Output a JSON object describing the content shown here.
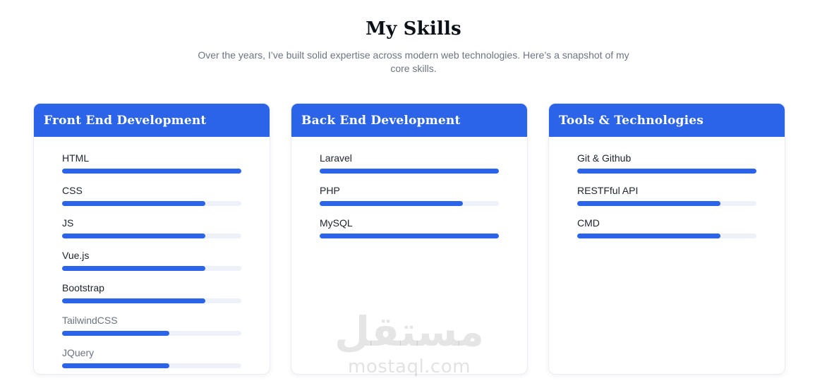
{
  "header": {
    "title": "My Skills",
    "subtitle": "Over the years, I’ve built solid expertise across modern web technologies. Here’s a snapshot of my core skills."
  },
  "colors": {
    "accent": "#2b64e8",
    "progress_track": "#eef1f7",
    "label": "#20262e",
    "label_muted": "#6b7280",
    "header_text": "#ffffff"
  },
  "cards": [
    {
      "title": "Front End Development",
      "skills": [
        {
          "name": "HTML",
          "percent": 100,
          "muted": false
        },
        {
          "name": "CSS",
          "percent": 80,
          "muted": false
        },
        {
          "name": "JS",
          "percent": 80,
          "muted": false
        },
        {
          "name": "Vue.js",
          "percent": 80,
          "muted": false
        },
        {
          "name": "Bootstrap",
          "percent": 80,
          "muted": false
        },
        {
          "name": "TailwindCSS",
          "percent": 60,
          "muted": true
        },
        {
          "name": "JQuery",
          "percent": 60,
          "muted": true
        }
      ]
    },
    {
      "title": "Back End Development",
      "skills": [
        {
          "name": "Laravel",
          "percent": 100,
          "muted": false
        },
        {
          "name": "PHP",
          "percent": 80,
          "muted": false
        },
        {
          "name": "MySQL",
          "percent": 100,
          "muted": false
        }
      ]
    },
    {
      "title": "Tools & Technologies",
      "skills": [
        {
          "name": "Git & Github",
          "percent": 100,
          "muted": false
        },
        {
          "name": "RESTFful API",
          "percent": 80,
          "muted": false
        },
        {
          "name": "CMD",
          "percent": 80,
          "muted": false
        }
      ]
    }
  ],
  "watermark": {
    "arabic": "مستقل",
    "domain": "mostaql.com"
  }
}
